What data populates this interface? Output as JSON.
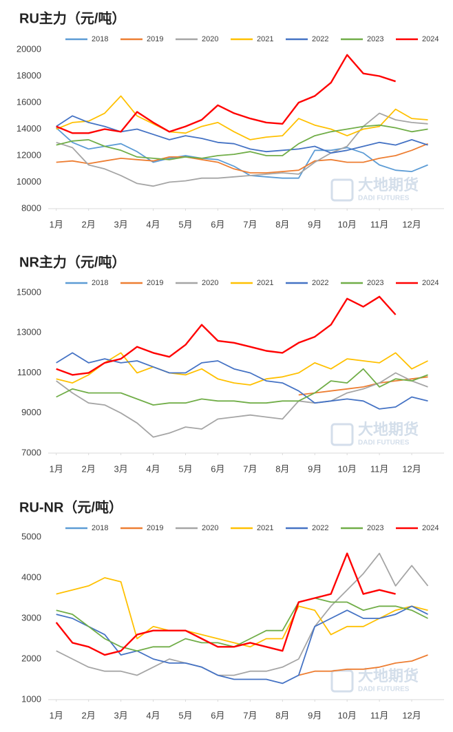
{
  "watermark": {
    "cn": "大地期货",
    "en": "DADI FUTURES"
  },
  "chart_data": [
    {
      "type": "line",
      "title": "RU主力（元/吨）",
      "x": [
        0,
        0.5,
        1,
        1.5,
        2,
        2.5,
        3,
        3.5,
        4,
        4.5,
        5,
        5.5,
        6,
        6.5,
        7,
        7.5,
        8,
        8.5,
        9,
        9.5,
        10,
        10.5,
        11,
        11.5
      ],
      "xlim": [
        -0.25,
        12
      ],
      "xticks": [
        {
          "value": 0,
          "label": "1月"
        },
        {
          "value": 1,
          "label": "2月"
        },
        {
          "value": 2,
          "label": "3月"
        },
        {
          "value": 3,
          "label": "4月"
        },
        {
          "value": 4,
          "label": "5月"
        },
        {
          "value": 5,
          "label": "6月"
        },
        {
          "value": 6,
          "label": "7月"
        },
        {
          "value": 7,
          "label": "8月"
        },
        {
          "value": 8,
          "label": "9月"
        },
        {
          "value": 9,
          "label": "10月"
        },
        {
          "value": 10,
          "label": "11月"
        },
        {
          "value": 11,
          "label": "12月"
        }
      ],
      "ylim": [
        8000,
        20000
      ],
      "yticks": [
        8000,
        10000,
        12000,
        14000,
        16000,
        18000,
        20000
      ],
      "grid": false,
      "series": [
        {
          "name": "2018",
          "color": "#5b9bd5",
          "values": [
            14100,
            13000,
            12500,
            12700,
            12900,
            12300,
            11500,
            11800,
            12000,
            11800,
            11700,
            11200,
            10500,
            10400,
            10300,
            10300,
            12400,
            12400,
            12600,
            12200,
            11300,
            10900,
            10800,
            11300
          ]
        },
        {
          "name": "2019",
          "color": "#ed7d31",
          "values": [
            11500,
            11600,
            11400,
            11600,
            11800,
            11700,
            11600,
            11900,
            11900,
            11700,
            11500,
            11000,
            10700,
            10700,
            10800,
            10900,
            11600,
            11700,
            11500,
            11500,
            11800,
            12000,
            12400,
            12900
          ]
        },
        {
          "name": "2020",
          "color": "#a5a5a5",
          "values": [
            13000,
            12600,
            11300,
            11000,
            10500,
            9900,
            9700,
            10000,
            10100,
            10300,
            10300,
            10400,
            10500,
            10600,
            10700,
            10600,
            11500,
            12200,
            12700,
            14200,
            15200,
            14700,
            14500,
            14400
          ]
        },
        {
          "name": "2021",
          "color": "#ffc000",
          "values": [
            14000,
            14500,
            14600,
            15200,
            16500,
            15000,
            14400,
            13800,
            13700,
            14200,
            14500,
            13800,
            13200,
            13400,
            13500,
            14800,
            14300,
            14000,
            13500,
            14000,
            14200,
            15500,
            14800,
            14700
          ]
        },
        {
          "name": "2022",
          "color": "#4472c4",
          "values": [
            14200,
            15000,
            14500,
            14200,
            13800,
            14000,
            13600,
            13200,
            13500,
            13300,
            13000,
            12900,
            12500,
            12300,
            12400,
            12500,
            12700,
            12200,
            12400,
            12700,
            13000,
            12800,
            13200,
            12800
          ]
        },
        {
          "name": "2023",
          "color": "#70ad47",
          "values": [
            12800,
            13100,
            13200,
            12700,
            12400,
            11900,
            11800,
            11700,
            11900,
            11800,
            12000,
            12100,
            12300,
            12000,
            12000,
            12900,
            13500,
            13800,
            14000,
            14200,
            14300,
            14100,
            13800,
            14000
          ]
        },
        {
          "name": "2024",
          "color": "#ff0000",
          "values": [
            14200,
            13700,
            13700,
            14000,
            13800,
            15300,
            14500,
            13800,
            14200,
            14700,
            15800,
            15200,
            14800,
            14500,
            14400,
            16000,
            16500,
            17500,
            19600,
            18200,
            18000,
            17600,
            null,
            null
          ]
        }
      ]
    },
    {
      "type": "line",
      "title": "NR主力（元/吨）",
      "x": [
        0,
        0.5,
        1,
        1.5,
        2,
        2.5,
        3,
        3.5,
        4,
        4.5,
        5,
        5.5,
        6,
        6.5,
        7,
        7.5,
        8,
        8.5,
        9,
        9.5,
        10,
        10.5,
        11,
        11.5
      ],
      "xlim": [
        -0.25,
        12
      ],
      "xticks": [
        {
          "value": 0,
          "label": "1月"
        },
        {
          "value": 1,
          "label": "2月"
        },
        {
          "value": 2,
          "label": "3月"
        },
        {
          "value": 3,
          "label": "4月"
        },
        {
          "value": 4,
          "label": "5月"
        },
        {
          "value": 5,
          "label": "6月"
        },
        {
          "value": 6,
          "label": "7月"
        },
        {
          "value": 7,
          "label": "8月"
        },
        {
          "value": 8,
          "label": "9月"
        },
        {
          "value": 9,
          "label": "10月"
        },
        {
          "value": 10,
          "label": "11月"
        },
        {
          "value": 11,
          "label": "12月"
        }
      ],
      "ylim": [
        7000,
        15000
      ],
      "yticks": [
        7000,
        9000,
        11000,
        13000,
        15000
      ],
      "grid": false,
      "series": [
        {
          "name": "2018",
          "color": "#5b9bd5",
          "values": [
            null,
            null,
            null,
            null,
            null,
            null,
            null,
            null,
            null,
            null,
            null,
            null,
            null,
            null,
            null,
            null,
            null,
            null,
            null,
            null,
            null,
            null,
            null,
            null
          ]
        },
        {
          "name": "2019",
          "color": "#ed7d31",
          "values": [
            null,
            null,
            null,
            null,
            null,
            null,
            null,
            null,
            null,
            null,
            null,
            null,
            null,
            null,
            null,
            9900,
            10000,
            10100,
            10200,
            10300,
            10500,
            10600,
            10700,
            10800
          ]
        },
        {
          "name": "2020",
          "color": "#a5a5a5",
          "values": [
            10600,
            10000,
            9500,
            9400,
            9000,
            8500,
            7800,
            8000,
            8300,
            8200,
            8700,
            8800,
            8900,
            8800,
            8700,
            9600,
            9500,
            9600,
            10000,
            10200,
            10500,
            11000,
            10600,
            10300
          ]
        },
        {
          "name": "2021",
          "color": "#ffc000",
          "values": [
            10700,
            10500,
            10900,
            11500,
            12000,
            11000,
            11300,
            11000,
            10900,
            11200,
            10700,
            10500,
            10400,
            10700,
            10800,
            11000,
            11500,
            11200,
            11700,
            11600,
            11500,
            12000,
            11200,
            11600
          ]
        },
        {
          "name": "2022",
          "color": "#4472c4",
          "values": [
            11500,
            12000,
            11500,
            11700,
            11500,
            11600,
            11300,
            11000,
            11000,
            11500,
            11600,
            11200,
            11000,
            10600,
            10500,
            10100,
            9500,
            9600,
            9700,
            9600,
            9200,
            9300,
            9800,
            9600
          ]
        },
        {
          "name": "2023",
          "color": "#70ad47",
          "values": [
            9800,
            10200,
            10000,
            10000,
            10000,
            9700,
            9400,
            9500,
            9500,
            9700,
            9600,
            9600,
            9500,
            9500,
            9600,
            9600,
            10000,
            10600,
            10500,
            11200,
            10300,
            10700,
            10600,
            10900
          ]
        },
        {
          "name": "2024",
          "color": "#ff0000",
          "values": [
            11200,
            10900,
            11000,
            11500,
            11700,
            12300,
            12000,
            11800,
            12400,
            13400,
            12600,
            12500,
            12300,
            12100,
            12000,
            12500,
            12800,
            13400,
            14700,
            14300,
            14800,
            13900,
            null,
            null
          ]
        }
      ]
    },
    {
      "type": "line",
      "title": "RU-NR（元/吨）",
      "x": [
        0,
        0.5,
        1,
        1.5,
        2,
        2.5,
        3,
        3.5,
        4,
        4.5,
        5,
        5.5,
        6,
        6.5,
        7,
        7.5,
        8,
        8.5,
        9,
        9.5,
        10,
        10.5,
        11,
        11.5
      ],
      "xlim": [
        -0.25,
        12
      ],
      "xticks": [
        {
          "value": 0,
          "label": "1月"
        },
        {
          "value": 1,
          "label": "2月"
        },
        {
          "value": 2,
          "label": "3月"
        },
        {
          "value": 3,
          "label": "4月"
        },
        {
          "value": 4,
          "label": "5月"
        },
        {
          "value": 5,
          "label": "6月"
        },
        {
          "value": 6,
          "label": "7月"
        },
        {
          "value": 7,
          "label": "8月"
        },
        {
          "value": 8,
          "label": "9月"
        },
        {
          "value": 9,
          "label": "10月"
        },
        {
          "value": 10,
          "label": "11月"
        },
        {
          "value": 11,
          "label": "12月"
        }
      ],
      "ylim": [
        1000,
        5000
      ],
      "yticks": [
        1000,
        2000,
        3000,
        4000,
        5000
      ],
      "grid": false,
      "series": [
        {
          "name": "2018",
          "color": "#5b9bd5",
          "values": [
            null,
            null,
            null,
            null,
            null,
            null,
            null,
            null,
            null,
            null,
            null,
            null,
            null,
            null,
            null,
            null,
            null,
            null,
            null,
            null,
            null,
            null,
            null,
            null
          ]
        },
        {
          "name": "2019",
          "color": "#ed7d31",
          "values": [
            null,
            null,
            null,
            null,
            null,
            null,
            null,
            null,
            null,
            null,
            null,
            null,
            null,
            null,
            null,
            1600,
            1700,
            1700,
            1750,
            1750,
            1800,
            1900,
            1950,
            2100
          ]
        },
        {
          "name": "2020",
          "color": "#a5a5a5",
          "values": [
            2200,
            2000,
            1800,
            1700,
            1700,
            1600,
            1800,
            2000,
            1900,
            1800,
            1600,
            1600,
            1700,
            1700,
            1800,
            2000,
            2800,
            3300,
            3700,
            4100,
            4600,
            3800,
            4300,
            3800
          ]
        },
        {
          "name": "2021",
          "color": "#ffc000",
          "values": [
            3600,
            3700,
            3800,
            4000,
            3900,
            2500,
            2800,
            2700,
            2700,
            2600,
            2500,
            2400,
            2300,
            2500,
            2500,
            3300,
            3200,
            2600,
            2800,
            2800,
            3000,
            3200,
            3300,
            3200
          ]
        },
        {
          "name": "2022",
          "color": "#4472c4",
          "values": [
            3100,
            3000,
            2800,
            2600,
            2100,
            2200,
            2000,
            1900,
            1900,
            1800,
            1600,
            1500,
            1500,
            1500,
            1400,
            1600,
            2800,
            3000,
            3200,
            3000,
            3000,
            3100,
            3300,
            3100
          ]
        },
        {
          "name": "2023",
          "color": "#70ad47",
          "values": [
            3200,
            3100,
            2800,
            2500,
            2300,
            2200,
            2300,
            2300,
            2500,
            2400,
            2400,
            2300,
            2500,
            2700,
            2700,
            3400,
            3500,
            3400,
            3400,
            3200,
            3300,
            3300,
            3200,
            3000
          ]
        },
        {
          "name": "2024",
          "color": "#ff0000",
          "values": [
            2900,
            2400,
            2300,
            2100,
            2200,
            2600,
            2700,
            2700,
            2700,
            2500,
            2300,
            2300,
            2400,
            2300,
            2200,
            3400,
            3500,
            3600,
            4600,
            3600,
            3700,
            3600,
            null,
            null
          ]
        }
      ]
    }
  ]
}
